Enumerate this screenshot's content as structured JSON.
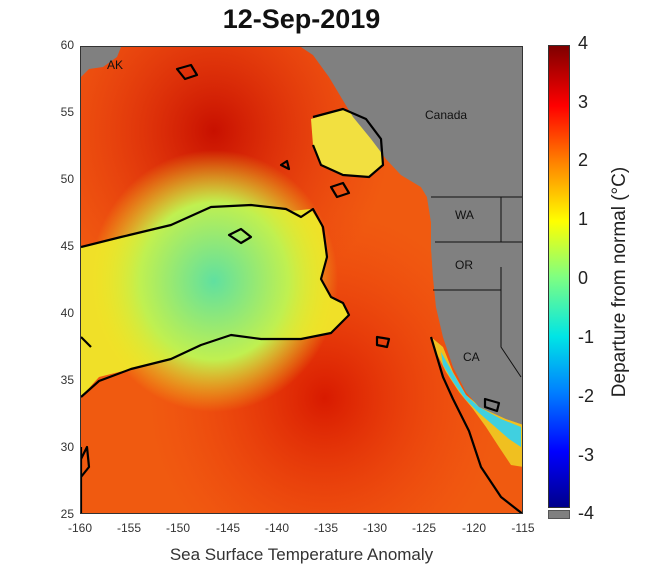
{
  "title": "12-Sep-2019",
  "xlabel": "Sea Surface Temperature Anomaly",
  "x_ticks": [
    "-160",
    "-155",
    "-150",
    "-145",
    "-140",
    "-135",
    "-130",
    "-125",
    "-120",
    "-115"
  ],
  "y_ticks": [
    "60",
    "55",
    "50",
    "45",
    "40",
    "35",
    "30",
    "25"
  ],
  "colorbar": {
    "label": "Departure from normal (°C)",
    "ticks": [
      "4",
      "3",
      "2",
      "1",
      "0",
      "-1",
      "-2",
      "-3",
      "-4"
    ],
    "range": [
      -4,
      4
    ],
    "colormap": "jet"
  },
  "region_labels": [
    "AK",
    "Canada",
    "WA",
    "OR",
    "CA"
  ],
  "colors": {
    "land": "#808080",
    "contour": "#000000",
    "border": "#333333"
  },
  "map_extent": {
    "lon": [
      -160,
      -115
    ],
    "lat": [
      25,
      60
    ]
  }
}
